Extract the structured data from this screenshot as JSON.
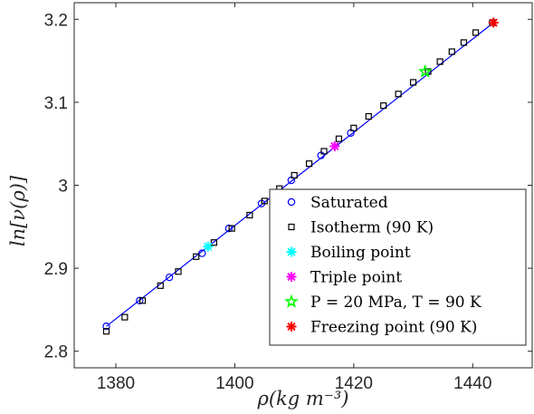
{
  "chart_data": {
    "type": "scatter",
    "xlabel": "ρ(kg m⁻³)",
    "ylabel": "ln[ν(ρ)]",
    "xlim": [
      1373,
      1450
    ],
    "ylim": [
      2.78,
      3.22
    ],
    "xticks": [
      1380,
      1400,
      1420,
      1440
    ],
    "yticks": [
      2.8,
      2.9,
      3.0,
      3.1,
      3.2
    ],
    "xtick_labels": [
      "1380",
      "1400",
      "1420",
      "1440"
    ],
    "ytick_labels": [
      "2.8",
      "2.9",
      "3",
      "3.1",
      "3.2"
    ],
    "grid": false,
    "legend_position": "bottom-right",
    "fit_line": {
      "color": "#0000ff",
      "x": [
        1378.4,
        1443.5
      ],
      "y": [
        2.83,
        3.196
      ]
    },
    "series": [
      {
        "name": "Saturated",
        "marker": "circle",
        "color": "#0000ff",
        "x": [
          1378.4,
          1384.0,
          1389.0,
          1394.5,
          1399.0,
          1404.5,
          1409.5,
          1414.5,
          1419.5
        ],
        "y": [
          2.83,
          2.861,
          2.889,
          2.918,
          2.948,
          2.978,
          3.006,
          3.036,
          3.063
        ]
      },
      {
        "name": "Isotherm (90 K)",
        "marker": "square",
        "color": "#000000",
        "x": [
          1378.4,
          1381.5,
          1384.5,
          1387.5,
          1390.5,
          1393.5,
          1396.5,
          1399.5,
          1402.5,
          1405.0,
          1407.5,
          1410.0,
          1412.5,
          1415.0,
          1417.5,
          1420.0,
          1422.5,
          1425.0,
          1427.5,
          1430.0,
          1432.5,
          1434.5,
          1436.5,
          1438.5,
          1440.5,
          1443.3
        ],
        "y": [
          2.824,
          2.841,
          2.861,
          2.879,
          2.896,
          2.914,
          2.931,
          2.948,
          2.964,
          2.981,
          2.996,
          3.012,
          3.026,
          3.041,
          3.056,
          3.069,
          3.083,
          3.096,
          3.11,
          3.124,
          3.137,
          3.149,
          3.161,
          3.172,
          3.184,
          3.196
        ]
      },
      {
        "name": "Boiling point",
        "marker": "asterisk",
        "color": "#00ffff",
        "x": [
          1395.5
        ],
        "y": [
          2.926
        ]
      },
      {
        "name": "Triple point",
        "marker": "asterisk",
        "color": "#ff00ff",
        "x": [
          1416.8
        ],
        "y": [
          3.047
        ]
      },
      {
        "name": "P = 20 MPa, T = 90 K",
        "marker": "pentagram",
        "color": "#00ff00",
        "x": [
          1432.0
        ],
        "y": [
          3.137
        ]
      },
      {
        "name": "Freezing point (90 K)",
        "marker": "asterisk",
        "color": "#ff0000",
        "x": [
          1443.5
        ],
        "y": [
          3.196
        ]
      }
    ]
  }
}
